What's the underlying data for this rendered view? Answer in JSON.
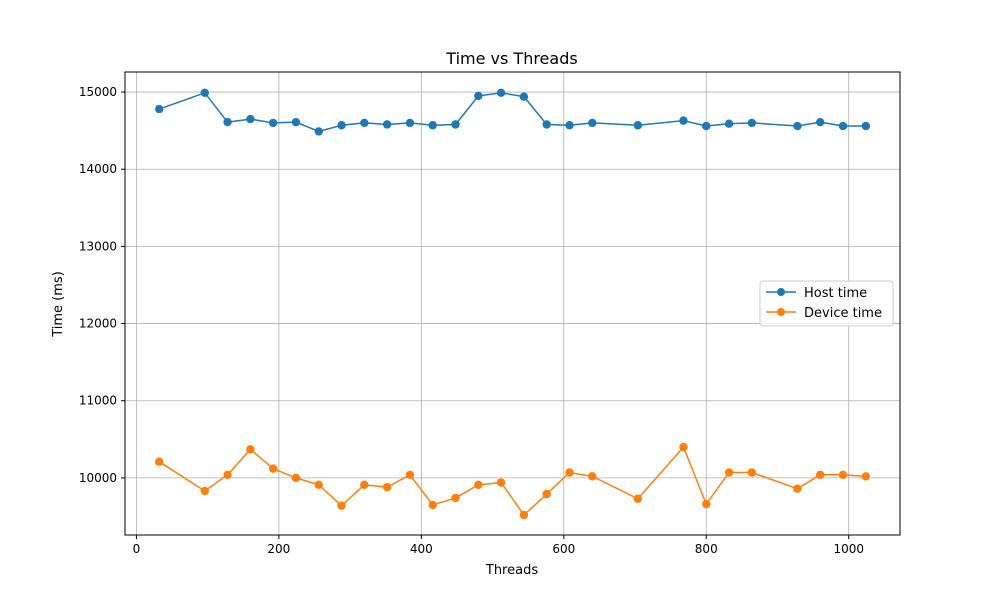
{
  "chart_data": {
    "type": "line",
    "title": "Time vs Threads",
    "xlabel": "Threads",
    "ylabel": "Time (ms)",
    "xlim": [
      -16,
      1072
    ],
    "ylim": [
      9260,
      15260
    ],
    "xticks": [
      0,
      200,
      400,
      600,
      800,
      1000
    ],
    "yticks": [
      10000,
      11000,
      12000,
      13000,
      14000,
      15000
    ],
    "grid": true,
    "legend_position": "center-right",
    "x": [
      32,
      96,
      128,
      160,
      192,
      224,
      256,
      288,
      320,
      352,
      384,
      416,
      448,
      480,
      512,
      544,
      576,
      608,
      640,
      704,
      768,
      800,
      832,
      864,
      928,
      960,
      992,
      1024
    ],
    "series": [
      {
        "name": "Host time",
        "color": "#1f77b4",
        "values": [
          14780,
          14990,
          14610,
          14650,
          14600,
          14610,
          14490,
          14570,
          14600,
          14580,
          14600,
          14570,
          14580,
          14950,
          14990,
          14940,
          14580,
          14570,
          14600,
          14570,
          14630,
          14560,
          14590,
          14600,
          14560,
          14610,
          14560,
          14560
        ]
      },
      {
        "name": "Device time",
        "color": "#ff7f0e",
        "values": [
          10210,
          9830,
          10040,
          10370,
          10120,
          10000,
          9910,
          9640,
          9910,
          9880,
          10040,
          9650,
          9740,
          9910,
          9940,
          9520,
          9790,
          10070,
          10020,
          9730,
          10400,
          9660,
          10070,
          10070,
          9860,
          10040,
          10040,
          10020
        ]
      }
    ]
  }
}
